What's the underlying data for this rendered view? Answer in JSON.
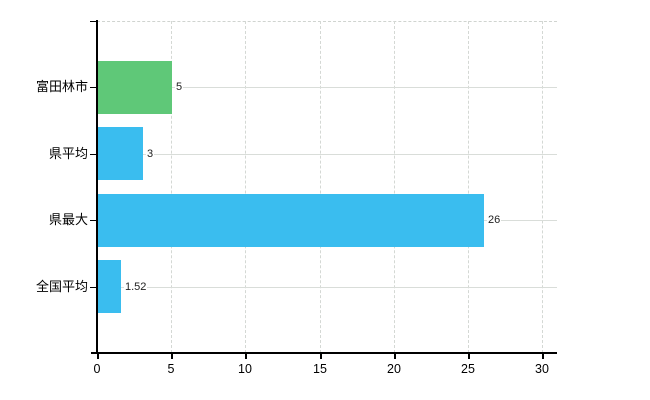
{
  "chart_data": {
    "type": "bar",
    "orientation": "horizontal",
    "title": "",
    "xlabel": "",
    "ylabel": "",
    "categories": [
      "富田林市",
      "県平均",
      "県最大",
      "全国平均"
    ],
    "values": [
      5,
      3,
      26,
      1.52
    ],
    "value_labels": [
      "5",
      "3",
      "26",
      "1.52"
    ],
    "series": [
      {
        "name": "",
        "values": [
          5,
          3,
          26,
          1.52
        ]
      }
    ],
    "bar_colors": [
      "#5fc878",
      "#3abdef",
      "#3abdef",
      "#3abdef"
    ],
    "x_ticks": [
      "0",
      "5",
      "10",
      "15",
      "20",
      "25",
      "30"
    ],
    "x_tick_values": [
      0,
      5,
      10,
      15,
      20,
      25,
      30
    ],
    "xlim": [
      0,
      31
    ],
    "grid": "on",
    "legend": "none",
    "colors": {
      "highlight_bar": "#5fc878",
      "default_bar": "#3abdef",
      "gridline": "#d9ddd9",
      "axis": "#000000",
      "text": "#000000"
    }
  }
}
